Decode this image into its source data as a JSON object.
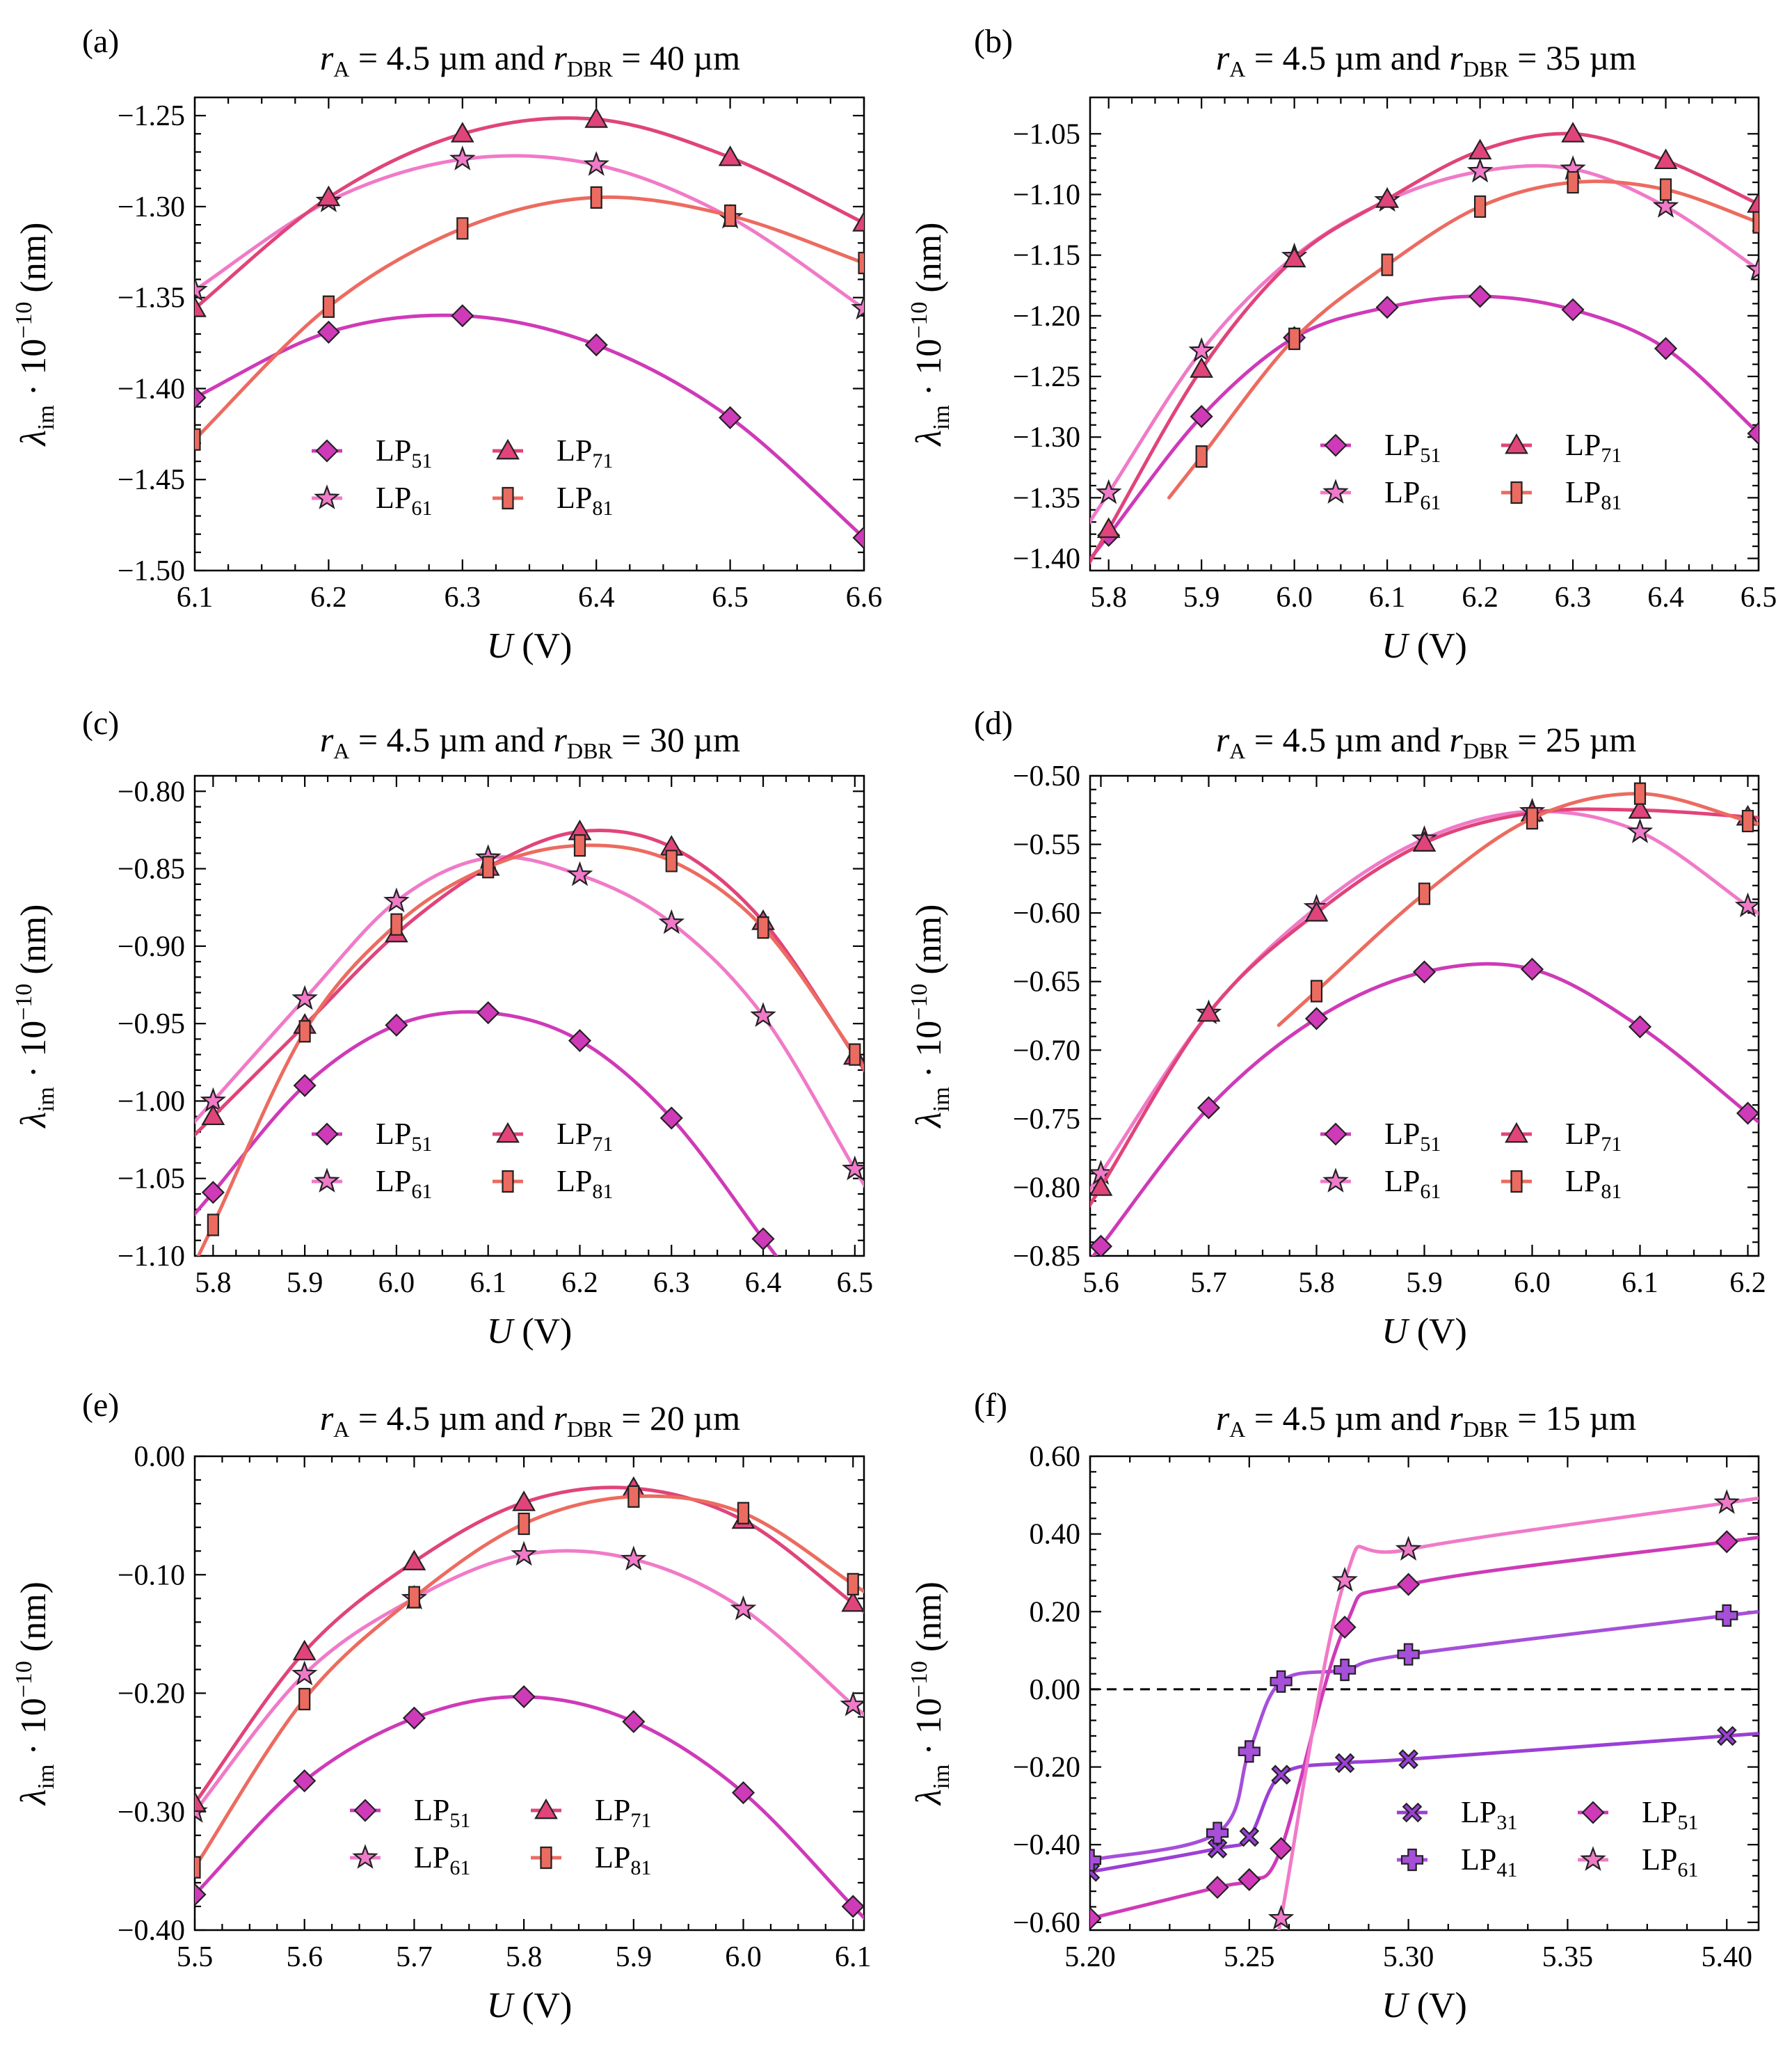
{
  "figure": {
    "series_styles": {
      "LP31": {
        "color": "#9b3fd6",
        "marker": "x-cross"
      },
      "LP41": {
        "color": "#a64fd9",
        "marker": "plus"
      },
      "LP51": {
        "color": "#cf3ab8",
        "marker": "diamond"
      },
      "LP61": {
        "color": "#f07ac8",
        "marker": "star"
      },
      "LP71": {
        "color": "#e0447a",
        "marker": "triangle"
      },
      "LP81": {
        "color": "#ec6b60",
        "marker": "square"
      }
    }
  },
  "chart_data": [
    {
      "panel": "(a)",
      "type": "line",
      "title": {
        "pre": "r",
        "sub1": "A",
        "mid": " = 4.5 µm and ",
        "r2": "r",
        "sub2": "DBR",
        "post": " = 40 µm"
      },
      "xlabel": {
        "main": "U",
        "unit": " (V)"
      },
      "ylabel": {
        "main": "λ",
        "sub": "im",
        "mid": " · 10",
        "sup": "−10",
        "unit": " (nm)"
      },
      "xlim": [
        6.1,
        6.6
      ],
      "ylim": [
        -1.5,
        -1.24
      ],
      "xticks": [
        6.1,
        6.2,
        6.3,
        6.4,
        6.5,
        6.6
      ],
      "xtick_labels": [
        "6.1",
        "6.2",
        "6.3",
        "6.4",
        "6.5",
        "6.6"
      ],
      "yticks": [
        -1.5,
        -1.45,
        -1.4,
        -1.35,
        -1.3,
        -1.25
      ],
      "ytick_labels": [
        "−1.50",
        "−1.45",
        "−1.40",
        "−1.35",
        "−1.30",
        "−1.25"
      ],
      "legend_position": "lower-center",
      "legend": [
        {
          "key": "LP51",
          "base": "LP",
          "sub": "51"
        },
        {
          "key": "LP71",
          "base": "LP",
          "sub": "71"
        },
        {
          "key": "LP61",
          "base": "LP",
          "sub": "61"
        },
        {
          "key": "LP81",
          "base": "LP",
          "sub": "81"
        }
      ],
      "series": [
        {
          "key": "LP51",
          "x": [
            6.1,
            6.2,
            6.3,
            6.4,
            6.5,
            6.6
          ],
          "y": [
            -1.405,
            -1.369,
            -1.36,
            -1.376,
            -1.416,
            -1.482
          ]
        },
        {
          "key": "LP61",
          "x": [
            6.1,
            6.2,
            6.3,
            6.4,
            6.5,
            6.6
          ],
          "y": [
            -1.346,
            -1.297,
            -1.274,
            -1.277,
            -1.306,
            -1.356
          ]
        },
        {
          "key": "LP71",
          "x": [
            6.1,
            6.2,
            6.3,
            6.4,
            6.5,
            6.6
          ],
          "y": [
            -1.356,
            -1.295,
            -1.26,
            -1.252,
            -1.273,
            -1.309
          ]
        },
        {
          "key": "LP81",
          "x": [
            6.1,
            6.2,
            6.3,
            6.4,
            6.5,
            6.6
          ],
          "y": [
            -1.428,
            -1.355,
            -1.312,
            -1.295,
            -1.305,
            -1.331
          ]
        }
      ]
    },
    {
      "panel": "(b)",
      "type": "line",
      "title": {
        "pre": "r",
        "sub1": "A",
        "mid": " = 4.5 µm and ",
        "r2": "r",
        "sub2": "DBR",
        "post": " = 35 µm"
      },
      "xlabel": {
        "main": "U",
        "unit": " (V)"
      },
      "ylabel": {
        "main": "λ",
        "sub": "im",
        "mid": " · 10",
        "sup": "−10",
        "unit": " (nm)"
      },
      "xlim": [
        5.78,
        6.5
      ],
      "ylim": [
        -1.41,
        -1.02
      ],
      "xticks": [
        5.8,
        5.9,
        6.0,
        6.1,
        6.2,
        6.3,
        6.4,
        6.5
      ],
      "xtick_labels": [
        "5.8",
        "5.9",
        "6.0",
        "6.1",
        "6.2",
        "6.3",
        "6.4",
        "6.5"
      ],
      "yticks": [
        -1.4,
        -1.35,
        -1.3,
        -1.25,
        -1.2,
        -1.15,
        -1.1,
        -1.05
      ],
      "ytick_labels": [
        "−1.40",
        "−1.35",
        "−1.30",
        "−1.25",
        "−1.20",
        "−1.15",
        "−1.10",
        "−1.05"
      ],
      "legend_position": "lower-right",
      "legend": [
        {
          "key": "LP51",
          "base": "LP",
          "sub": "51"
        },
        {
          "key": "LP71",
          "base": "LP",
          "sub": "71"
        },
        {
          "key": "LP61",
          "base": "LP",
          "sub": "61"
        },
        {
          "key": "LP81",
          "base": "LP",
          "sub": "81"
        }
      ],
      "series": [
        {
          "key": "LP51",
          "x": [
            5.8,
            5.9,
            6.0,
            6.1,
            6.2,
            6.3,
            6.4,
            6.5
          ],
          "y": [
            -1.381,
            -1.283,
            -1.218,
            -1.193,
            -1.184,
            -1.195,
            -1.227,
            -1.297
          ]
        },
        {
          "key": "LP61",
          "x": [
            5.8,
            5.9,
            6.0,
            6.1,
            6.2,
            6.3,
            6.4,
            6.5
          ],
          "y": [
            -1.346,
            -1.229,
            -1.151,
            -1.105,
            -1.081,
            -1.079,
            -1.11,
            -1.162
          ]
        },
        {
          "key": "LP71",
          "x": [
            5.8,
            5.9,
            6.0,
            6.1,
            6.2,
            6.3,
            6.4,
            6.5
          ],
          "y": [
            -1.376,
            -1.244,
            -1.153,
            -1.104,
            -1.064,
            -1.05,
            -1.072,
            -1.108
          ]
        },
        {
          "key": "LP81",
          "x": [
            5.9,
            6.0,
            6.1,
            6.2,
            6.3,
            6.4,
            6.5
          ],
          "y": [
            -1.316,
            -1.219,
            -1.158,
            -1.11,
            -1.09,
            -1.096,
            -1.123
          ]
        }
      ]
    },
    {
      "panel": "(c)",
      "type": "line",
      "title": {
        "pre": "r",
        "sub1": "A",
        "mid": " = 4.5 µm and ",
        "r2": "r",
        "sub2": "DBR",
        "post": " = 30 µm"
      },
      "xlabel": {
        "main": "U",
        "unit": " (V)"
      },
      "ylabel": {
        "main": "λ",
        "sub": "im",
        "mid": " · 10",
        "sup": "−10",
        "unit": " (nm)"
      },
      "xlim": [
        5.78,
        6.51
      ],
      "ylim": [
        -1.1,
        -0.79
      ],
      "xticks": [
        5.8,
        5.9,
        6.0,
        6.1,
        6.2,
        6.3,
        6.4,
        6.5
      ],
      "xtick_labels": [
        "5.8",
        "5.9",
        "6.0",
        "6.1",
        "6.2",
        "6.3",
        "6.4",
        "6.5"
      ],
      "yticks": [
        -1.1,
        -1.05,
        -1.0,
        -0.95,
        -0.9,
        -0.85,
        -0.8
      ],
      "ytick_labels": [
        "−1.10",
        "−1.05",
        "−1.00",
        "−0.95",
        "−0.90",
        "−0.85",
        "−0.80"
      ],
      "legend_position": "lower-center",
      "legend": [
        {
          "key": "LP51",
          "base": "LP",
          "sub": "51"
        },
        {
          "key": "LP71",
          "base": "LP",
          "sub": "71"
        },
        {
          "key": "LP61",
          "base": "LP",
          "sub": "61"
        },
        {
          "key": "LP81",
          "base": "LP",
          "sub": "81"
        }
      ],
      "series": [
        {
          "key": "LP51",
          "x": [
            5.8,
            5.9,
            6.0,
            6.1,
            6.2,
            6.3,
            6.4
          ],
          "y": [
            -1.059,
            -0.99,
            -0.951,
            -0.943,
            -0.961,
            -1.011,
            -1.089
          ]
        },
        {
          "key": "LP61",
          "x": [
            5.8,
            5.9,
            6.0,
            6.1,
            6.2,
            6.3,
            6.4,
            6.5
          ],
          "y": [
            -1.0,
            -0.934,
            -0.871,
            -0.843,
            -0.854,
            -0.885,
            -0.945,
            -1.044
          ]
        },
        {
          "key": "LP71",
          "x": [
            5.8,
            5.9,
            6.0,
            6.1,
            6.2,
            6.3,
            6.4,
            6.5
          ],
          "y": [
            -1.01,
            -0.951,
            -0.892,
            -0.849,
            -0.826,
            -0.836,
            -0.884,
            -0.971
          ]
        },
        {
          "key": "LP81",
          "x": [
            5.8,
            5.9,
            6.0,
            6.1,
            6.2,
            6.3,
            6.4,
            6.5
          ],
          "y": [
            -1.08,
            -0.955,
            -0.886,
            -0.849,
            -0.835,
            -0.845,
            -0.888,
            -0.97
          ]
        }
      ]
    },
    {
      "panel": "(d)",
      "type": "line",
      "title": {
        "pre": "r",
        "sub1": "A",
        "mid": " = 4.5 µm and ",
        "r2": "r",
        "sub2": "DBR",
        "post": " = 25 µm"
      },
      "xlabel": {
        "main": "U",
        "unit": " (V)"
      },
      "ylabel": {
        "main": "λ",
        "sub": "im",
        "mid": " · 10",
        "sup": "−10",
        "unit": " (nm)"
      },
      "xlim": [
        5.59,
        6.21
      ],
      "ylim": [
        -0.85,
        -0.5
      ],
      "xticks": [
        5.6,
        5.7,
        5.8,
        5.9,
        6.0,
        6.1,
        6.2
      ],
      "xtick_labels": [
        "5.6",
        "5.7",
        "5.8",
        "5.9",
        "6.0",
        "6.1",
        "6.2"
      ],
      "yticks": [
        -0.85,
        -0.8,
        -0.75,
        -0.7,
        -0.65,
        -0.6,
        -0.55,
        -0.5
      ],
      "ytick_labels": [
        "−0.85",
        "−0.80",
        "−0.75",
        "−0.70",
        "−0.65",
        "−0.60",
        "−0.55",
        "−0.50"
      ],
      "legend_position": "lower-right",
      "legend": [
        {
          "key": "LP51",
          "base": "LP",
          "sub": "51"
        },
        {
          "key": "LP71",
          "base": "LP",
          "sub": "71"
        },
        {
          "key": "LP61",
          "base": "LP",
          "sub": "61"
        },
        {
          "key": "LP81",
          "base": "LP",
          "sub": "81"
        }
      ],
      "series": [
        {
          "key": "LP51",
          "x": [
            5.6,
            5.7,
            5.8,
            5.9,
            6.0,
            6.1,
            6.2
          ],
          "y": [
            -0.843,
            -0.742,
            -0.677,
            -0.643,
            -0.641,
            -0.683,
            -0.746
          ]
        },
        {
          "key": "LP61",
          "x": [
            5.6,
            5.7,
            5.8,
            5.9,
            6.0,
            6.1,
            6.2
          ],
          "y": [
            -0.79,
            -0.673,
            -0.596,
            -0.546,
            -0.526,
            -0.541,
            -0.595
          ]
        },
        {
          "key": "LP71",
          "x": [
            5.6,
            5.7,
            5.8,
            5.9,
            6.0,
            6.1,
            6.2
          ],
          "y": [
            -0.8,
            -0.673,
            -0.6,
            -0.549,
            -0.527,
            -0.525,
            -0.53
          ]
        },
        {
          "key": "LP81",
          "x": [
            5.8,
            5.9,
            6.0,
            6.1,
            6.2
          ],
          "y": [
            -0.657,
            -0.586,
            -0.531,
            -0.513,
            -0.533
          ]
        }
      ]
    },
    {
      "panel": "(e)",
      "type": "line",
      "title": {
        "pre": "r",
        "sub1": "A",
        "mid": " = 4.5 µm and ",
        "r2": "r",
        "sub2": "DBR",
        "post": " = 20 µm"
      },
      "xlabel": {
        "main": "U",
        "unit": " (V)"
      },
      "ylabel": {
        "main": "λ",
        "sub": "im",
        "mid": " · 10",
        "sup": "−10",
        "unit": " (nm)"
      },
      "xlim": [
        5.5,
        6.11
      ],
      "ylim": [
        -0.4,
        0.0
      ],
      "xticks": [
        5.5,
        5.6,
        5.7,
        5.8,
        5.9,
        6.0,
        6.1
      ],
      "xtick_labels": [
        "5.5",
        "5.6",
        "5.7",
        "5.8",
        "5.9",
        "6.0",
        "6.1"
      ],
      "yticks": [
        -0.4,
        -0.3,
        -0.2,
        -0.1,
        0.0
      ],
      "ytick_labels": [
        "−0.40",
        "−0.30",
        "−0.20",
        "−0.10",
        "0.00"
      ],
      "legend_position": "lower-center",
      "legend": [
        {
          "key": "LP51",
          "base": "LP",
          "sub": "51"
        },
        {
          "key": "LP71",
          "base": "LP",
          "sub": "71"
        },
        {
          "key": "LP61",
          "base": "LP",
          "sub": "61"
        },
        {
          "key": "LP81",
          "base": "LP",
          "sub": "81"
        }
      ],
      "series": [
        {
          "key": "LP51",
          "x": [
            5.5,
            5.6,
            5.7,
            5.8,
            5.9,
            6.0,
            6.1
          ],
          "y": [
            -0.37,
            -0.274,
            -0.221,
            -0.203,
            -0.224,
            -0.284,
            -0.38
          ]
        },
        {
          "key": "LP61",
          "x": [
            5.5,
            5.6,
            5.7,
            5.8,
            5.9,
            6.0,
            6.1
          ],
          "y": [
            -0.3,
            -0.184,
            -0.12,
            -0.083,
            -0.087,
            -0.129,
            -0.21
          ]
        },
        {
          "key": "LP71",
          "x": [
            5.5,
            5.6,
            5.7,
            5.8,
            5.9,
            6.0,
            6.1
          ],
          "y": [
            -0.293,
            -0.165,
            -0.089,
            -0.039,
            -0.027,
            -0.054,
            -0.124
          ]
        },
        {
          "key": "LP81",
          "x": [
            5.5,
            5.6,
            5.7,
            5.8,
            5.9,
            6.0,
            6.1
          ],
          "y": [
            -0.347,
            -0.205,
            -0.119,
            -0.057,
            -0.034,
            -0.048,
            -0.108
          ]
        }
      ]
    },
    {
      "panel": "(f)",
      "type": "line",
      "title": {
        "pre": "r",
        "sub1": "A",
        "mid": " = 4.5 µm and ",
        "r2": "r",
        "sub2": "DBR",
        "post": " = 15 µm"
      },
      "xlabel": {
        "main": "U",
        "unit": " (V)"
      },
      "ylabel": {
        "main": "λ",
        "sub": "im",
        "mid": " · 10",
        "sup": "−10",
        "unit": " (nm)"
      },
      "xlim": [
        5.2,
        5.41
      ],
      "ylim": [
        -0.62,
        0.6
      ],
      "xticks": [
        5.2,
        5.25,
        5.3,
        5.35,
        5.4
      ],
      "xtick_labels": [
        "5.20",
        "5.25",
        "5.30",
        "5.35",
        "5.40"
      ],
      "yticks": [
        -0.6,
        -0.4,
        -0.2,
        0.0,
        0.2,
        0.4,
        0.6
      ],
      "ytick_labels": [
        "−0.60",
        "−0.40",
        "−0.20",
        "0.00",
        "0.20",
        "0.40",
        "0.60"
      ],
      "zero_line": true,
      "legend_position": "lower-right",
      "legend": [
        {
          "key": "LP31",
          "base": "LP",
          "sub": "31"
        },
        {
          "key": "LP51",
          "base": "LP",
          "sub": "51"
        },
        {
          "key": "LP41",
          "base": "LP",
          "sub": "41"
        },
        {
          "key": "LP61",
          "base": "LP",
          "sub": "61"
        }
      ],
      "series": [
        {
          "key": "LP31",
          "x": [
            5.2,
            5.24,
            5.25,
            5.26,
            5.28,
            5.3,
            5.4
          ],
          "y": [
            -0.47,
            -0.41,
            -0.38,
            -0.22,
            -0.19,
            -0.18,
            -0.12
          ]
        },
        {
          "key": "LP41",
          "x": [
            5.2,
            5.24,
            5.25,
            5.26,
            5.28,
            5.3,
            5.4
          ],
          "y": [
            -0.44,
            -0.37,
            -0.16,
            0.02,
            0.05,
            0.09,
            0.19
          ]
        },
        {
          "key": "LP51",
          "x": [
            5.2,
            5.24,
            5.25,
            5.26,
            5.28,
            5.3,
            5.4
          ],
          "y": [
            -0.59,
            -0.51,
            -0.49,
            -0.41,
            0.16,
            0.27,
            0.38
          ]
        },
        {
          "key": "LP61",
          "x": [
            5.26,
            5.28,
            5.3,
            5.4
          ],
          "y": [
            -0.59,
            0.28,
            0.36,
            0.48
          ]
        }
      ]
    }
  ]
}
